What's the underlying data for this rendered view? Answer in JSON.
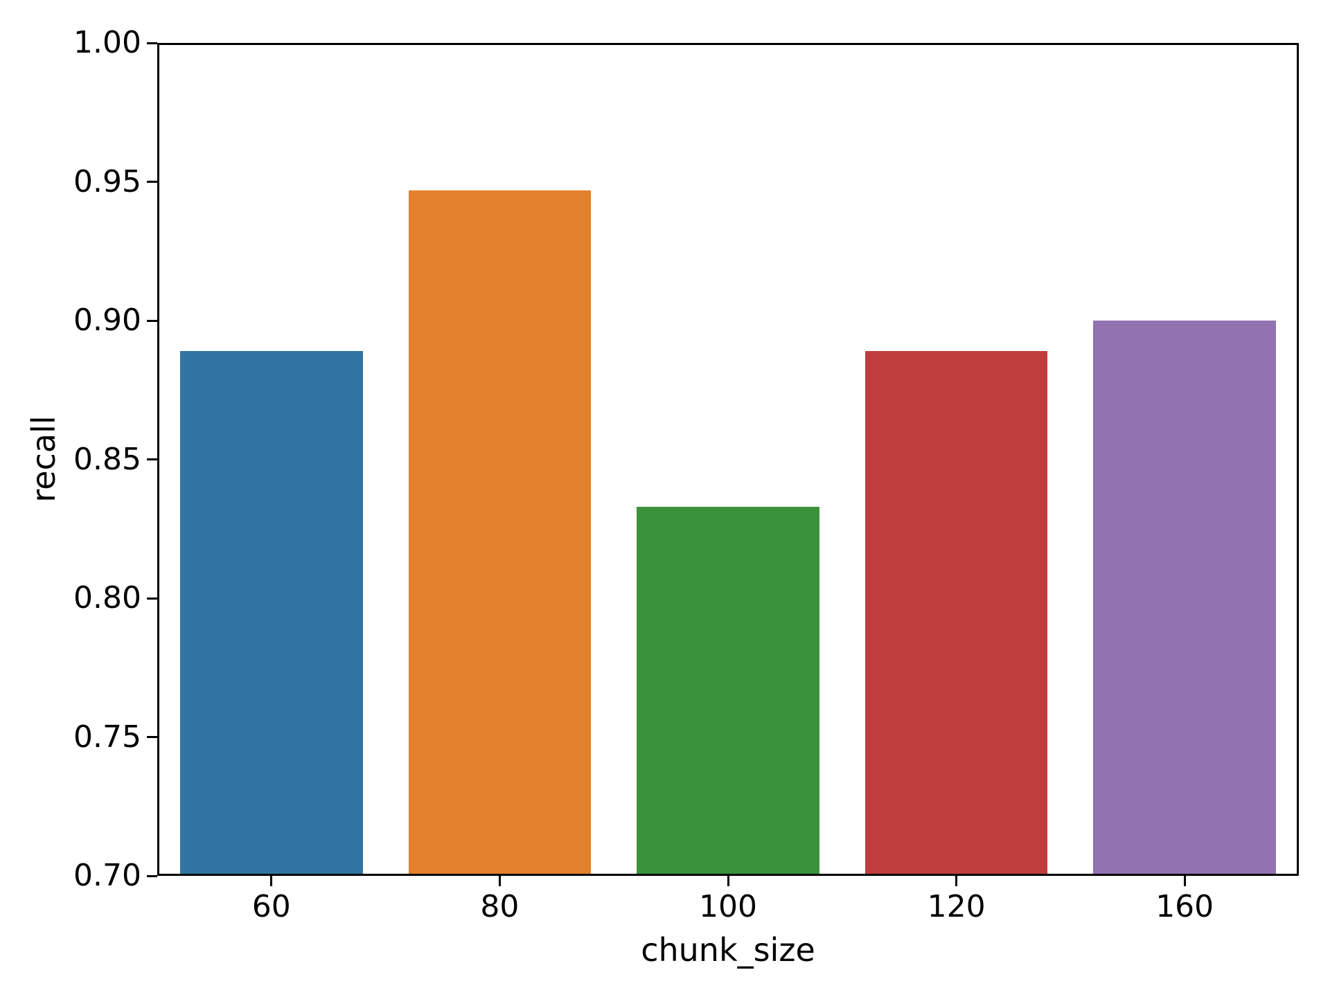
{
  "figure": {
    "background": "#ffffff",
    "axis_color": "#000000",
    "text_color": "#000000"
  },
  "chart_data": {
    "type": "bar",
    "title": "",
    "xlabel": "chunk_size",
    "ylabel": "recall",
    "categories": [
      "60",
      "80",
      "100",
      "120",
      "160"
    ],
    "values": [
      0.889,
      0.947,
      0.833,
      0.889,
      0.9
    ],
    "bar_colors": [
      "#3274a1",
      "#e1812c",
      "#3a923a",
      "#c03d3e",
      "#9372b2"
    ],
    "ylim": [
      0.7,
      1.0
    ],
    "yticks": [
      1.0,
      0.95,
      0.9,
      0.85,
      0.8,
      0.75,
      0.7
    ],
    "ytick_labels": [
      "1.00",
      "0.95",
      "0.90",
      "0.85",
      "0.80",
      "0.75",
      "0.70"
    ],
    "bar_rel_width": 0.8,
    "grid": false,
    "legend_position": "none"
  }
}
